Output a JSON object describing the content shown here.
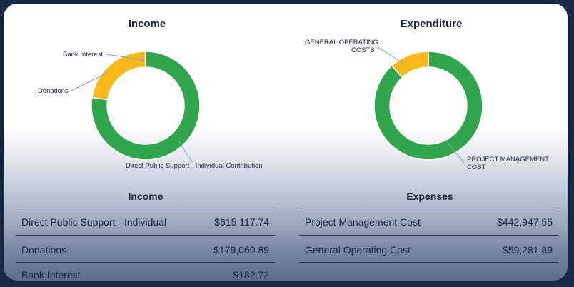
{
  "income_chart": {
    "title": "Income",
    "chart_data": {
      "type": "pie",
      "title": "Income",
      "categories": [
        "Direct Public Support - Individual Contribution",
        "Donations",
        "Bank Interest"
      ],
      "values": [
        615117.74,
        179060.89,
        182.72
      ],
      "colors": [
        "#31a54b",
        "#fbb81b",
        "#e8a300"
      ]
    }
  },
  "expenditure_chart": {
    "title": "Expenditure",
    "chart_data": {
      "type": "pie",
      "title": "Expenditure",
      "categories": [
        "PROJECT MANAGEMENT COST",
        "GENERAL OPERATING COSTS"
      ],
      "values": [
        442947.55,
        59281.89
      ],
      "colors": [
        "#31a54b",
        "#fbb81b"
      ]
    }
  },
  "income_table": {
    "title": "Income",
    "rows": [
      {
        "label": "Direct Public Support - Individual",
        "value": "$615,117.74"
      },
      {
        "label": "Donations",
        "value": "$179,060.89"
      },
      {
        "label": "Bank Interest",
        "value": "$182.72"
      }
    ]
  },
  "expenses_table": {
    "title": "Expenses",
    "rows": [
      {
        "label": "Project Management Cost",
        "value": "$442,947.55"
      },
      {
        "label": "General Operating Cost",
        "value": "$59,281.89"
      }
    ]
  }
}
